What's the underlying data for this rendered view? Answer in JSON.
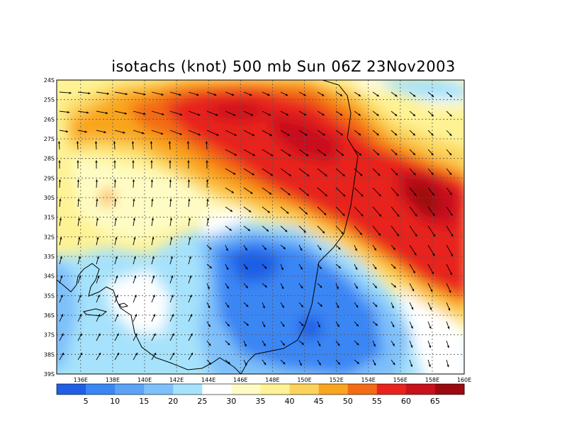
{
  "title": "isotachs (knot) 500 mb Sun 06Z 23Nov2003",
  "map": {
    "lon_labels": [
      "136E",
      "138E",
      "140E",
      "142E",
      "144E",
      "146E",
      "148E",
      "150E",
      "152E",
      "154E",
      "156E",
      "158E",
      "160E"
    ],
    "lat_labels": [
      "24S",
      "25S",
      "26S",
      "27S",
      "28S",
      "29S",
      "30S",
      "31S",
      "32S",
      "33S",
      "34S",
      "35S",
      "36S",
      "37S",
      "38S",
      "39S"
    ],
    "lon_range": [
      134.5,
      160
    ],
    "lat_range": [
      -24,
      -39
    ]
  },
  "colorbar": {
    "levels": [
      "5",
      "10",
      "15",
      "20",
      "25",
      "30",
      "35",
      "40",
      "45",
      "50",
      "55",
      "60",
      "65"
    ],
    "colors": [
      "#1f5fe6",
      "#3a86f5",
      "#5aa3f7",
      "#7ec0fa",
      "#a6e2fb",
      "#ffffff",
      "#fefcc4",
      "#fef294",
      "#fbd35c",
      "#f9a51f",
      "#f36b14",
      "#e8231c",
      "#c9111a",
      "#9b0a0f"
    ]
  }
}
